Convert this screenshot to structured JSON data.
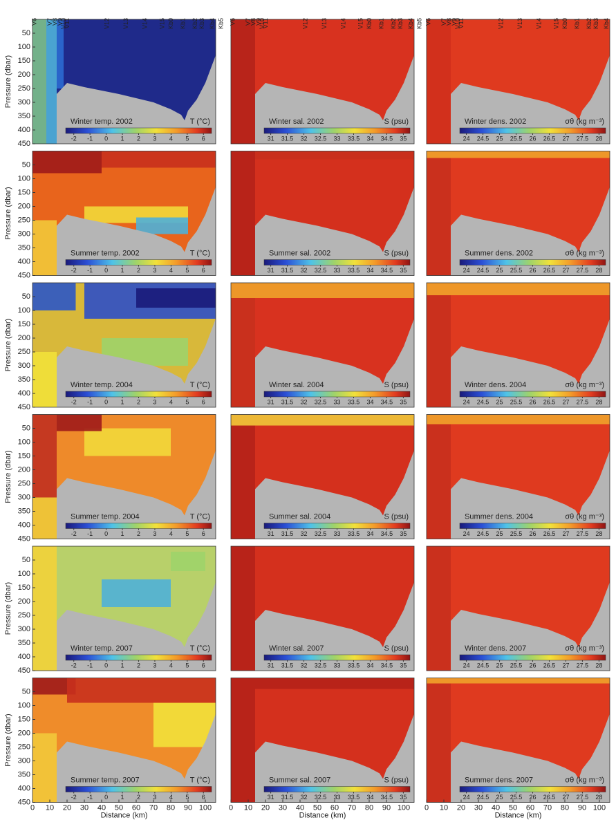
{
  "chart_data": [
    {
      "type": "contour",
      "title": "Winter temp. 2002",
      "colorbar": {
        "label": "T (°C)",
        "lim": [
          -2.5,
          6.5
        ],
        "ticks": [
          -2,
          -1,
          0,
          1,
          2,
          3,
          4,
          5,
          6
        ]
      },
      "ylim": [
        0,
        450
      ],
      "xlim": [
        0,
        106
      ],
      "ylabel": "Pressure (dbar)",
      "yticks": [
        50,
        100,
        150,
        200,
        250,
        300,
        350,
        400,
        450
      ],
      "stations": [
        {
          "label": "V6",
          "km": 0
        },
        {
          "label": "V7",
          "km": 9
        },
        {
          "label": "V8",
          "km": 12
        },
        {
          "label": "V9",
          "km": 15
        },
        {
          "label": "V10",
          "km": 17
        },
        {
          "label": "V11",
          "km": 19
        },
        {
          "label": "V12",
          "km": 42
        },
        {
          "label": "V13",
          "km": 53
        },
        {
          "label": "V14",
          "km": 64
        },
        {
          "label": "V15",
          "km": 74
        },
        {
          "label": "Kb0",
          "km": 79
        },
        {
          "label": "Kb1",
          "km": 86
        },
        {
          "label": "Kb2",
          "km": 93
        },
        {
          "label": "Kb3",
          "km": 97
        },
        {
          "label": "Kb4",
          "km": 103
        },
        {
          "label": "Kb5",
          "km": 108
        }
      ]
    },
    {
      "type": "contour",
      "title": "Winter sal. 2002",
      "colorbar": {
        "label": "S (psu)",
        "lim": [
          30.8,
          35.2
        ],
        "ticks": [
          31,
          31.5,
          32,
          32.5,
          33,
          33.5,
          34,
          34.5,
          35
        ]
      },
      "ylim": [
        0,
        450
      ],
      "xlim": [
        0,
        106
      ],
      "stations": [
        {
          "label": "V6",
          "km": 0
        },
        {
          "label": "V7",
          "km": 9
        },
        {
          "label": "V8",
          "km": 12
        },
        {
          "label": "V9",
          "km": 15
        },
        {
          "label": "V10",
          "km": 17
        },
        {
          "label": "V11",
          "km": 19
        },
        {
          "label": "V12",
          "km": 42
        },
        {
          "label": "V13",
          "km": 53
        },
        {
          "label": "V14",
          "km": 64
        },
        {
          "label": "V15",
          "km": 74
        },
        {
          "label": "Kb0",
          "km": 79
        },
        {
          "label": "Kb1",
          "km": 86
        },
        {
          "label": "Kb2",
          "km": 93
        },
        {
          "label": "Kb3",
          "km": 97
        },
        {
          "label": "Kb4",
          "km": 103
        },
        {
          "label": "Kb5",
          "km": 108
        }
      ]
    },
    {
      "type": "contour",
      "title": "Winter dens. 2002",
      "colorbar": {
        "label": "σθ (kg m⁻³)",
        "lim": [
          23.8,
          28.2
        ],
        "ticks": [
          24,
          24.5,
          25,
          25.5,
          26,
          26.5,
          27,
          27.5,
          28
        ]
      },
      "ylim": [
        0,
        450
      ],
      "xlim": [
        0,
        106
      ],
      "stations": [
        {
          "label": "V6",
          "km": 0
        },
        {
          "label": "V7",
          "km": 9
        },
        {
          "label": "V8",
          "km": 12
        },
        {
          "label": "V9",
          "km": 15
        },
        {
          "label": "V10",
          "km": 17
        },
        {
          "label": "V11",
          "km": 19
        },
        {
          "label": "V12",
          "km": 42
        },
        {
          "label": "V13",
          "km": 53
        },
        {
          "label": "V14",
          "km": 64
        },
        {
          "label": "V15",
          "km": 74
        },
        {
          "label": "Kb0",
          "km": 79
        },
        {
          "label": "Kb1",
          "km": 86
        },
        {
          "label": "Kb2",
          "km": 93
        },
        {
          "label": "Kb3",
          "km": 97
        },
        {
          "label": "Kb4",
          "km": 103
        }
      ]
    },
    {
      "type": "contour",
      "title": "Summer temp. 2002",
      "colorbar": {
        "label": "T (°C)",
        "lim": [
          -2.5,
          6.5
        ],
        "ticks": [
          -2,
          -1,
          0,
          1,
          2,
          3,
          4,
          5,
          6
        ]
      },
      "ylim": [
        0,
        450
      ],
      "xlim": [
        0,
        106
      ],
      "ylabel": "Pressure (dbar)",
      "yticks": [
        50,
        100,
        150,
        200,
        250,
        300,
        350,
        400,
        450
      ]
    },
    {
      "type": "contour",
      "title": "Summer sal. 2002",
      "colorbar": {
        "label": "S (psu)",
        "lim": [
          30.8,
          35.2
        ],
        "ticks": [
          31,
          31.5,
          32,
          32.5,
          33,
          33.5,
          34,
          34.5,
          35
        ]
      },
      "ylim": [
        0,
        450
      ],
      "xlim": [
        0,
        106
      ]
    },
    {
      "type": "contour",
      "title": "Summer dens. 2002",
      "colorbar": {
        "label": "σθ (kg m⁻³)",
        "lim": [
          23.8,
          28.2
        ],
        "ticks": [
          24,
          24.5,
          25,
          25.5,
          26,
          26.5,
          27,
          27.5,
          28
        ]
      },
      "ylim": [
        0,
        450
      ],
      "xlim": [
        0,
        106
      ]
    },
    {
      "type": "contour",
      "title": "Winter temp. 2004",
      "colorbar": {
        "label": "T (°C)",
        "lim": [
          -2.5,
          6.5
        ],
        "ticks": [
          -2,
          -1,
          0,
          1,
          2,
          3,
          4,
          5,
          6
        ]
      },
      "ylim": [
        0,
        450
      ],
      "xlim": [
        0,
        106
      ],
      "ylabel": "Pressure (dbar)",
      "yticks": [
        50,
        100,
        150,
        200,
        250,
        300,
        350,
        400,
        450
      ]
    },
    {
      "type": "contour",
      "title": "Winter sal. 2004",
      "colorbar": {
        "label": "S (psu)",
        "lim": [
          30.8,
          35.2
        ],
        "ticks": [
          31,
          31.5,
          32,
          32.5,
          33,
          33.5,
          34,
          34.5,
          35
        ]
      },
      "ylim": [
        0,
        450
      ],
      "xlim": [
        0,
        106
      ]
    },
    {
      "type": "contour",
      "title": "Winter dens. 2004",
      "colorbar": {
        "label": "σθ (kg m⁻³)",
        "lim": [
          23.8,
          28.2
        ],
        "ticks": [
          24,
          24.5,
          25,
          25.5,
          26,
          26.5,
          27,
          27.5,
          28
        ]
      },
      "ylim": [
        0,
        450
      ],
      "xlim": [
        0,
        106
      ]
    },
    {
      "type": "contour",
      "title": "Summer temp. 2004",
      "colorbar": {
        "label": "T (°C)",
        "lim": [
          -2.5,
          6.5
        ],
        "ticks": [
          -2,
          -1,
          0,
          1,
          2,
          3,
          4,
          5,
          6
        ]
      },
      "ylim": [
        0,
        450
      ],
      "xlim": [
        0,
        106
      ],
      "ylabel": "Pressure (dbar)",
      "yticks": [
        50,
        100,
        150,
        200,
        250,
        300,
        350,
        400,
        450
      ]
    },
    {
      "type": "contour",
      "title": "Summer sal. 2004",
      "colorbar": {
        "label": "S (psu)",
        "lim": [
          30.8,
          35.2
        ],
        "ticks": [
          31,
          31.5,
          32,
          32.5,
          33,
          33.5,
          34,
          34.5,
          35
        ]
      },
      "ylim": [
        0,
        450
      ],
      "xlim": [
        0,
        106
      ]
    },
    {
      "type": "contour",
      "title": "Summer dens. 2004",
      "colorbar": {
        "label": "σθ (kg m⁻³)",
        "lim": [
          23.8,
          28.2
        ],
        "ticks": [
          24,
          24.5,
          25,
          25.5,
          26,
          26.5,
          27,
          27.5,
          28
        ]
      },
      "ylim": [
        0,
        450
      ],
      "xlim": [
        0,
        106
      ]
    },
    {
      "type": "contour",
      "title": "Winter temp. 2007",
      "colorbar": {
        "label": "T (°C)",
        "lim": [
          -2.5,
          6.5
        ],
        "ticks": [
          -2,
          -1,
          0,
          1,
          2,
          3,
          4,
          5,
          6
        ]
      },
      "ylim": [
        0,
        450
      ],
      "xlim": [
        0,
        106
      ],
      "ylabel": "Pressure (dbar)",
      "yticks": [
        50,
        100,
        150,
        200,
        250,
        300,
        350,
        400,
        450
      ]
    },
    {
      "type": "contour",
      "title": "Winter sal. 2007",
      "colorbar": {
        "label": "S (psu)",
        "lim": [
          30.8,
          35.2
        ],
        "ticks": [
          31,
          31.5,
          32,
          32.5,
          33,
          33.5,
          34,
          34.5,
          35
        ]
      },
      "ylim": [
        0,
        450
      ],
      "xlim": [
        0,
        106
      ]
    },
    {
      "type": "contour",
      "title": "Winter dens. 2007",
      "colorbar": {
        "label": "σθ (kg m⁻³)",
        "lim": [
          23.8,
          28.2
        ],
        "ticks": [
          24,
          24.5,
          25,
          25.5,
          26,
          26.5,
          27,
          27.5,
          28
        ]
      },
      "ylim": [
        0,
        450
      ],
      "xlim": [
        0,
        106
      ]
    },
    {
      "type": "contour",
      "title": "Summer temp. 2007",
      "colorbar": {
        "label": "T (°C)",
        "lim": [
          -2.5,
          6.5
        ],
        "ticks": [
          -2,
          -1,
          0,
          1,
          2,
          3,
          4,
          5,
          6
        ]
      },
      "ylim": [
        0,
        450
      ],
      "xlim": [
        0,
        106
      ],
      "ylabel": "Pressure (dbar)",
      "yticks": [
        50,
        100,
        150,
        200,
        250,
        300,
        350,
        400,
        450
      ],
      "xlabel": "Distance (km)",
      "xticks": [
        0,
        10,
        20,
        30,
        40,
        50,
        60,
        70,
        80,
        90,
        100
      ]
    },
    {
      "type": "contour",
      "title": "Summer sal. 2007",
      "colorbar": {
        "label": "S (psu)",
        "lim": [
          30.8,
          35.2
        ],
        "ticks": [
          31,
          31.5,
          32,
          32.5,
          33,
          33.5,
          34,
          34.5,
          35
        ]
      },
      "ylim": [
        0,
        450
      ],
      "xlim": [
        0,
        106
      ],
      "xlabel": "Distance (km)",
      "xticks": [
        0,
        10,
        20,
        30,
        40,
        50,
        60,
        70,
        80,
        90,
        100
      ]
    },
    {
      "type": "contour",
      "title": "Summer dens. 2007",
      "colorbar": {
        "label": "σθ (kg m⁻³)",
        "lim": [
          23.8,
          28.2
        ],
        "ticks": [
          24,
          24.5,
          25,
          25.5,
          26,
          26.5,
          27,
          27.5,
          28
        ]
      },
      "ylim": [
        0,
        450
      ],
      "xlim": [
        0,
        106
      ],
      "xlabel": "Distance (km)",
      "xticks": [
        0,
        10,
        20,
        30,
        40,
        50,
        60,
        70,
        80,
        90,
        100
      ]
    }
  ]
}
